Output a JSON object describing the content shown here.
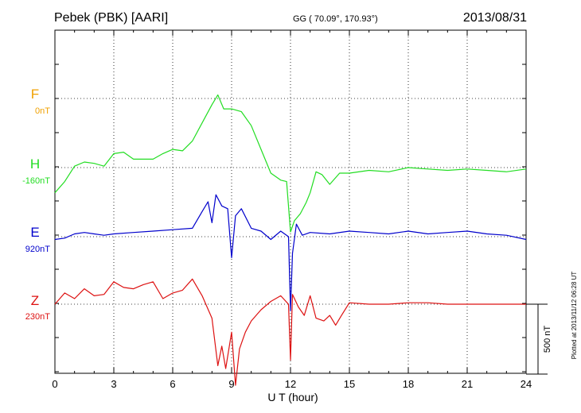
{
  "header": {
    "title": "Pebek (PBK)  [AARI]",
    "location": "GG ( 70.09°, 170.93°)",
    "date": "2013/08/31"
  },
  "footer": {
    "plotted_note": "Plotted at 2013/11/12 06:28 UT",
    "scale_label": "500 nT"
  },
  "colors": {
    "F": "#f0a000",
    "H": "#22dd22",
    "E": "#0000cc",
    "Z": "#dd1111"
  },
  "chart_data": {
    "type": "line",
    "xlabel": "U T (hour)",
    "xlim": [
      0,
      24
    ],
    "xticks": [
      0,
      3,
      6,
      9,
      12,
      15,
      18,
      21,
      24
    ],
    "xtick_labels": [
      "0",
      "3",
      "6",
      "9",
      "12",
      "15",
      "18",
      "21",
      "24"
    ],
    "grid": true,
    "units": "nT",
    "scale_bar_nT": 500,
    "series": [
      {
        "name": "F",
        "baseline_label": "0nT",
        "x": [],
        "values": []
      },
      {
        "name": "H",
        "baseline_label": "-160nT",
        "x": [
          0,
          0.5,
          1,
          1.5,
          2,
          2.5,
          3,
          3.5,
          4,
          4.5,
          5,
          5.5,
          6,
          6.5,
          7,
          7.5,
          8,
          8.3,
          8.6,
          9,
          9.5,
          10,
          10.5,
          11,
          11.5,
          11.8,
          12,
          12.2,
          12.5,
          12.8,
          13,
          13.3,
          13.6,
          14,
          14.5,
          15,
          16,
          17,
          18,
          19,
          20,
          21,
          22,
          23,
          24
        ],
        "values": [
          -180,
          -100,
          10,
          40,
          30,
          10,
          100,
          110,
          60,
          60,
          60,
          100,
          130,
          120,
          190,
          320,
          450,
          520,
          420,
          420,
          400,
          300,
          130,
          -40,
          -90,
          -100,
          -460,
          -380,
          -330,
          -250,
          -180,
          -30,
          -50,
          -120,
          -40,
          -40,
          -20,
          -30,
          0,
          -10,
          -20,
          -10,
          -20,
          -30,
          -10
        ]
      },
      {
        "name": "E",
        "baseline_label": "920nT",
        "x": [
          0,
          0.5,
          1,
          1.5,
          2,
          2.5,
          3,
          4,
          5,
          6,
          7,
          7.5,
          7.8,
          8,
          8.2,
          8.5,
          8.8,
          9,
          9.2,
          9.5,
          10,
          10.5,
          11,
          11.5,
          11.9,
          12,
          12.1,
          12.3,
          12.6,
          13,
          14,
          15,
          16,
          17,
          18,
          19,
          20,
          21,
          22,
          23,
          24
        ],
        "values": [
          -20,
          -10,
          20,
          30,
          20,
          10,
          20,
          30,
          40,
          50,
          60,
          180,
          250,
          100,
          300,
          220,
          200,
          -150,
          150,
          200,
          60,
          40,
          -20,
          40,
          0,
          -530,
          -120,
          90,
          10,
          30,
          20,
          40,
          30,
          20,
          40,
          20,
          30,
          40,
          20,
          10,
          -20
        ]
      },
      {
        "name": "Z",
        "baseline_label": "230nT",
        "x": [
          0,
          0.5,
          1,
          1.5,
          2,
          2.5,
          3,
          3.5,
          4,
          4.5,
          5,
          5.5,
          6,
          6.5,
          7,
          7.5,
          8,
          8.3,
          8.5,
          8.7,
          9,
          9.2,
          9.4,
          9.7,
          10,
          10.5,
          11,
          11.5,
          11.9,
          12,
          12.1,
          12.4,
          12.7,
          13,
          13.3,
          13.7,
          14,
          14.3,
          14.6,
          15,
          16,
          17,
          18,
          19,
          20,
          21,
          22,
          23,
          24
        ],
        "values": [
          0,
          80,
          40,
          110,
          60,
          70,
          160,
          120,
          110,
          140,
          160,
          40,
          80,
          100,
          180,
          60,
          -100,
          -440,
          -300,
          -460,
          -200,
          -580,
          -320,
          -200,
          -120,
          -40,
          20,
          60,
          0,
          -400,
          70,
          -20,
          -80,
          60,
          -100,
          -120,
          -80,
          -150,
          -80,
          10,
          0,
          0,
          10,
          10,
          0,
          0,
          0,
          0,
          0
        ]
      }
    ]
  }
}
